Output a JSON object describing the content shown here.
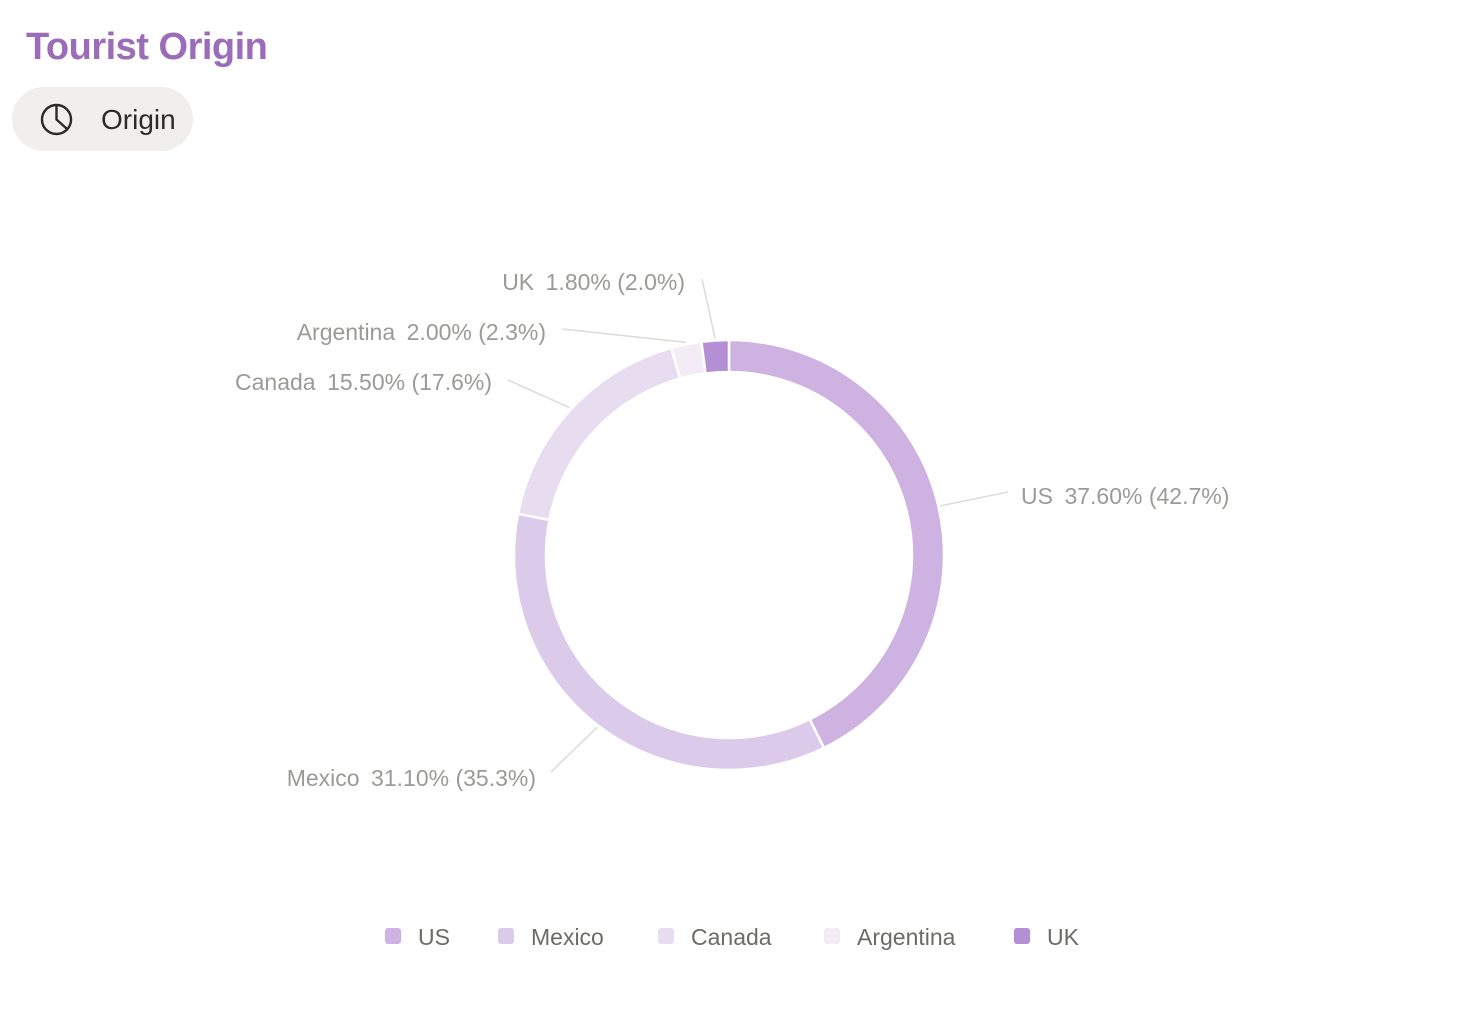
{
  "title": "Tourist Origin",
  "colors": {
    "title": "#9b6cb7",
    "chip_background": "#f0efed",
    "label_text": "#9a9a97",
    "leader_line": "#dcdcda",
    "legend_text": "#6b6b68"
  },
  "view_chip": {
    "icon": "pie-chart-icon",
    "label": "Origin"
  },
  "chart_data": {
    "type": "pie",
    "variant": "donut",
    "title": "",
    "categories": [
      "US",
      "Mexico",
      "Canada",
      "Argentina",
      "UK"
    ],
    "values": [
      37.6,
      31.1,
      15.5,
      2.0,
      1.8
    ],
    "value_labels": [
      "37.60%",
      "31.10%",
      "15.50%",
      "2.00%",
      "1.80%"
    ],
    "share_labels": [
      "(42.7%)",
      "(35.3%)",
      "(17.6%)",
      "(2.3%)",
      "(2.0%)"
    ],
    "colors": [
      "#ceb2e2",
      "#dccaeb",
      "#e8ddf0",
      "#f3ecf7",
      "#b58fd5"
    ],
    "legend_position": "bottom"
  }
}
